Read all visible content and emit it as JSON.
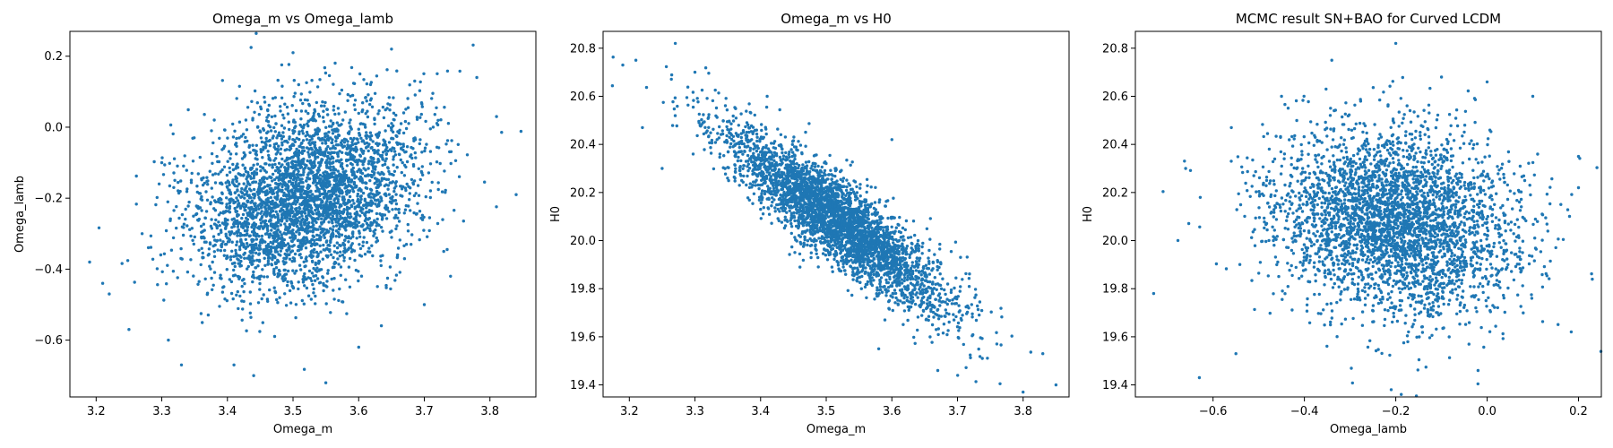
{
  "chart_data": [
    {
      "type": "scatter",
      "title": "Omega_m vs Omega_lamb",
      "xlabel": "Omega_m",
      "ylabel": "Omega_lamb",
      "xlim": [
        3.16,
        3.87
      ],
      "ylim": [
        -0.76,
        0.27
      ],
      "xticks": [
        3.2,
        3.3,
        3.4,
        3.5,
        3.6,
        3.7,
        3.8
      ],
      "yticks": [
        -0.6,
        -0.4,
        -0.2,
        0.0,
        0.2
      ],
      "xtick_labels": [
        "3.2",
        "3.3",
        "3.4",
        "3.5",
        "3.6",
        "3.7",
        "3.8"
      ],
      "ytick_labels": [
        "−0.6",
        "−0.4",
        "−0.2",
        "0.0",
        "0.2"
      ],
      "grid": false,
      "color": "#1f77b4",
      "distribution": {
        "x_mean": 3.52,
        "x_sd": 0.085,
        "y_mean": -0.2,
        "y_sd": 0.13,
        "corr": 0.28,
        "n": 3500
      },
      "points": [
        [
          3.19,
          -0.38
        ],
        [
          3.21,
          -0.44
        ],
        [
          3.22,
          -0.47
        ],
        [
          3.25,
          -0.57
        ],
        [
          3.84,
          -0.19
        ],
        [
          3.81,
          0.03
        ],
        [
          3.78,
          0.14
        ],
        [
          3.65,
          0.22
        ],
        [
          3.55,
          -0.72
        ],
        [
          3.44,
          -0.7
        ],
        [
          3.41,
          -0.67
        ],
        [
          3.33,
          -0.67
        ],
        [
          3.31,
          -0.6
        ],
        [
          3.7,
          -0.5
        ],
        [
          3.74,
          -0.42
        ],
        [
          3.6,
          -0.62
        ],
        [
          3.5,
          0.21
        ],
        [
          3.38,
          0.02
        ],
        [
          3.3,
          -0.1
        ],
        [
          3.27,
          -0.3
        ]
      ]
    },
    {
      "type": "scatter",
      "title": "Omega_m vs H0",
      "xlabel": "Omega_m",
      "ylabel": "H0",
      "xlim": [
        3.16,
        3.87
      ],
      "ylim": [
        19.35,
        20.87
      ],
      "xticks": [
        3.2,
        3.3,
        3.4,
        3.5,
        3.6,
        3.7,
        3.8
      ],
      "yticks": [
        19.4,
        19.6,
        19.8,
        20.0,
        20.2,
        20.4,
        20.6,
        20.8
      ],
      "xtick_labels": [
        "3.2",
        "3.3",
        "3.4",
        "3.5",
        "3.6",
        "3.7",
        "3.8"
      ],
      "ytick_labels": [
        "19.4",
        "19.6",
        "19.8",
        "20.0",
        "20.2",
        "20.4",
        "20.6",
        "20.8"
      ],
      "grid": false,
      "color": "#1f77b4",
      "distribution": {
        "x_mean": 3.52,
        "x_sd": 0.085,
        "y_mean": 20.08,
        "y_sd": 0.19,
        "corr": -0.88,
        "n": 3500
      },
      "points": [
        [
          3.19,
          20.73
        ],
        [
          3.21,
          20.75
        ],
        [
          3.27,
          20.82
        ],
        [
          3.85,
          19.4
        ],
        [
          3.83,
          19.53
        ],
        [
          3.8,
          19.37
        ],
        [
          3.22,
          20.47
        ],
        [
          3.25,
          20.3
        ],
        [
          3.3,
          20.7
        ],
        [
          3.46,
          19.89
        ],
        [
          3.6,
          20.42
        ],
        [
          3.76,
          19.57
        ],
        [
          3.67,
          19.46
        ],
        [
          3.58,
          19.55
        ],
        [
          3.41,
          20.6
        ]
      ]
    },
    {
      "type": "scatter",
      "title": "MCMC result SN+BAO for Curved LCDM",
      "xlabel": "Omega_lamb",
      "ylabel": "H0",
      "xlim": [
        -0.77,
        0.25
      ],
      "ylim": [
        19.35,
        20.87
      ],
      "xticks": [
        -0.6,
        -0.4,
        -0.2,
        0.0,
        0.2
      ],
      "yticks": [
        19.4,
        19.6,
        19.8,
        20.0,
        20.2,
        20.4,
        20.6,
        20.8
      ],
      "xtick_labels": [
        "−0.6",
        "−0.4",
        "−0.2",
        "0.0",
        "0.2"
      ],
      "ytick_labels": [
        "19.4",
        "19.6",
        "19.8",
        "20.0",
        "20.2",
        "20.4",
        "20.6",
        "20.8"
      ],
      "grid": false,
      "color": "#1f77b4",
      "distribution": {
        "x_mean": -0.2,
        "x_sd": 0.13,
        "y_mean": 20.08,
        "y_sd": 0.19,
        "corr": -0.15,
        "n": 3500
      },
      "points": [
        [
          -0.73,
          19.78
        ],
        [
          -0.63,
          19.43
        ],
        [
          -0.66,
          20.3
        ],
        [
          -0.56,
          20.47
        ],
        [
          -0.2,
          20.82
        ],
        [
          -0.34,
          20.75
        ],
        [
          -0.1,
          20.68
        ],
        [
          0.1,
          20.6
        ],
        [
          0.2,
          20.35
        ],
        [
          0.2,
          20.22
        ],
        [
          -0.21,
          19.38
        ],
        [
          -0.02,
          19.46
        ],
        [
          -0.55,
          19.53
        ],
        [
          0.0,
          20.66
        ],
        [
          -0.45,
          20.6
        ]
      ]
    }
  ]
}
